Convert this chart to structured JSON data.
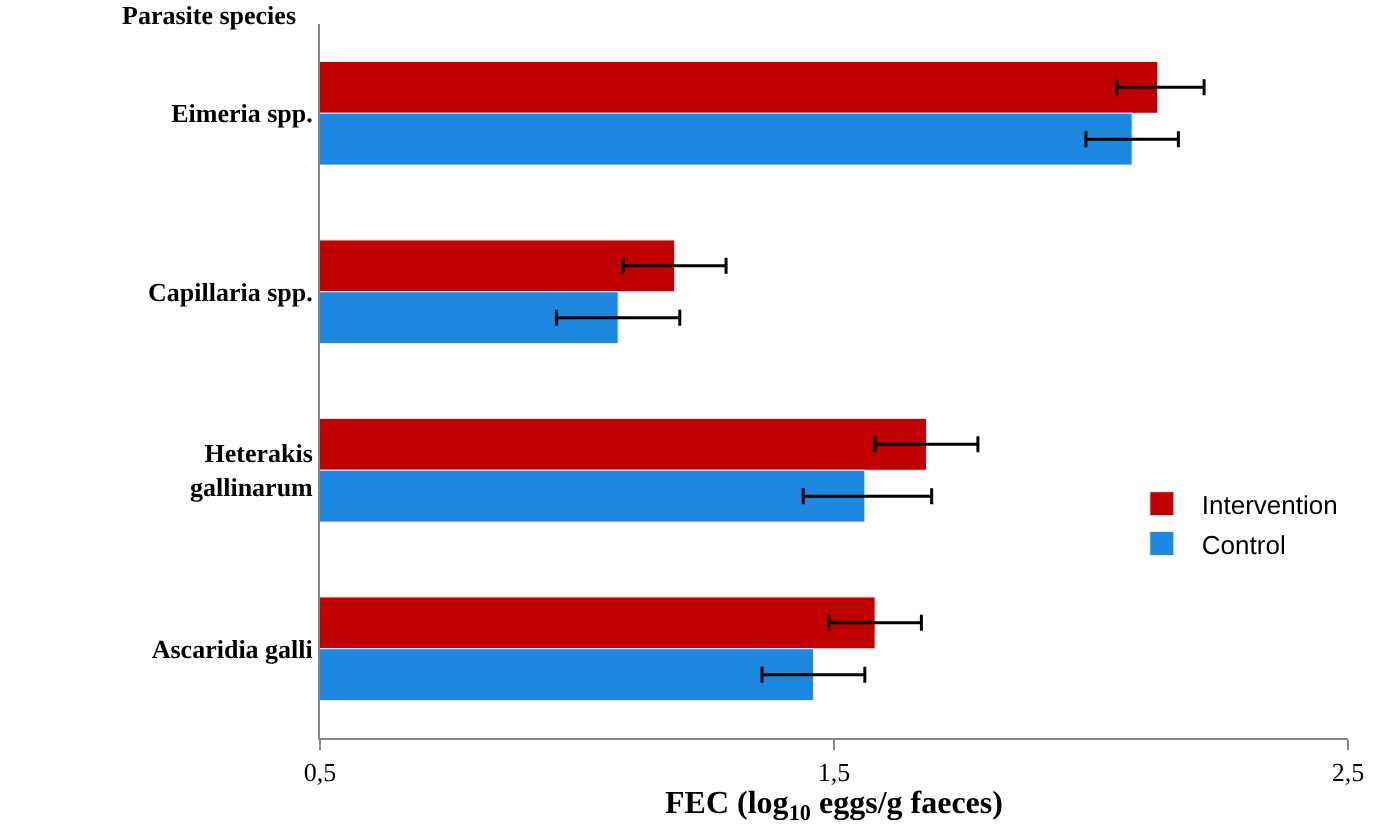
{
  "chart_data": {
    "type": "bar",
    "orientation": "horizontal",
    "ylabel": "Parasite species",
    "xlabel": "FEC (log$_{10}$ eggs/g faeces)",
    "categories": [
      "Eimeria spp.",
      "Capillaria spp.",
      "Heterakis gallinarum",
      "Ascaridia galli"
    ],
    "series": [
      {
        "name": "Intervention",
        "color": "#c00000",
        "values": [
          2.13,
          1.19,
          1.68,
          1.58
        ],
        "errors": [
          [
            2.05,
            2.22
          ],
          [
            1.09,
            1.29
          ],
          [
            1.58,
            1.78
          ],
          [
            1.49,
            1.67
          ]
        ]
      },
      {
        "name": "Control",
        "color": "#1e88e0",
        "values": [
          2.08,
          1.08,
          1.56,
          1.46
        ],
        "errors": [
          [
            1.99,
            2.17
          ],
          [
            0.96,
            1.2
          ],
          [
            1.44,
            1.69
          ],
          [
            1.36,
            1.56
          ]
        ]
      }
    ],
    "xlim": [
      0.5,
      2.5
    ],
    "xticks": [
      {
        "value": 0.5,
        "label": "0,5"
      },
      {
        "value": 1.5,
        "label": "1,5"
      },
      {
        "value": 2.5,
        "label": "2,5"
      }
    ],
    "legend": "right"
  }
}
